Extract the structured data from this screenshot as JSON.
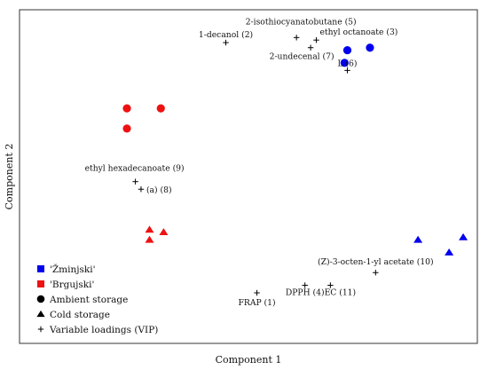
{
  "chart_data": {
    "type": "scatter",
    "xlabel": "Component 1",
    "ylabel": "Component 2",
    "colors": {
      "blue": "#0000ee",
      "red": "#ee1111",
      "black": "#000000"
    },
    "series": [
      {
        "name": "'Žminjski'",
        "marker": "circle",
        "color": "#0000ee",
        "points": [
          [
            4.0,
            8.1
          ],
          [
            4.8,
            8.2
          ],
          [
            3.9,
            7.6
          ]
        ]
      },
      {
        "name": "'Brgujski'",
        "marker": "circle",
        "color": "#ee1111",
        "points": [
          [
            -3.8,
            5.8
          ],
          [
            -2.6,
            5.8
          ],
          [
            -3.8,
            5.0
          ]
        ]
      },
      {
        "name": "'Brgujski'",
        "marker": "triangle",
        "color": "#ee1111",
        "points": [
          [
            -3.0,
            1.0
          ],
          [
            -2.5,
            0.9
          ],
          [
            -3.0,
            0.6
          ]
        ]
      },
      {
        "name": "'Žminjski'",
        "marker": "triangle",
        "color": "#0000ee",
        "points": [
          [
            6.5,
            0.6
          ],
          [
            8.1,
            0.7
          ],
          [
            7.6,
            0.1
          ]
        ]
      }
    ],
    "loadings": [
      {
        "label": "1-decanol (2)",
        "x": -0.3,
        "y": 8.4
      },
      {
        "label": "2-isothiocyanatobutane (5)",
        "x": 2.2,
        "y": 8.6
      },
      {
        "label": "ethyl octanoate (3)",
        "x": 2.9,
        "y": 8.5
      },
      {
        "label": "2-undecenal (7)",
        "x": 2.7,
        "y": 8.2
      },
      {
        "label": "L (6)",
        "x": 4.0,
        "y": 7.3
      },
      {
        "label": "ethyl hexadecanoate (9)",
        "x": -3.5,
        "y": 2.9
      },
      {
        "label": "(a) (8)",
        "x": -3.3,
        "y": 2.6
      },
      {
        "label": "(Z)-3-octen-1-yl acetate (10)",
        "x": 5.0,
        "y": -0.7
      },
      {
        "label": "DPPH (4)",
        "x": 2.5,
        "y": -1.2
      },
      {
        "label": "EC (11)",
        "x": 3.4,
        "y": -1.2
      },
      {
        "label": "FRAP (1)",
        "x": 0.8,
        "y": -1.5
      }
    ],
    "legend": {
      "position": "bottom-left",
      "entries": [
        {
          "label": "'Žminjski'",
          "symbol": "square",
          "color": "#0000ee"
        },
        {
          "label": "'Brgujski'",
          "symbol": "square",
          "color": "#ee1111"
        },
        {
          "label": "Ambient storage",
          "symbol": "circle",
          "color": "#000000"
        },
        {
          "label": "Cold storage",
          "symbol": "triangle",
          "color": "#000000"
        },
        {
          "label": "Variable loadings (VIP)",
          "symbol": "plus",
          "color": "#000000"
        }
      ]
    },
    "grid": false
  }
}
